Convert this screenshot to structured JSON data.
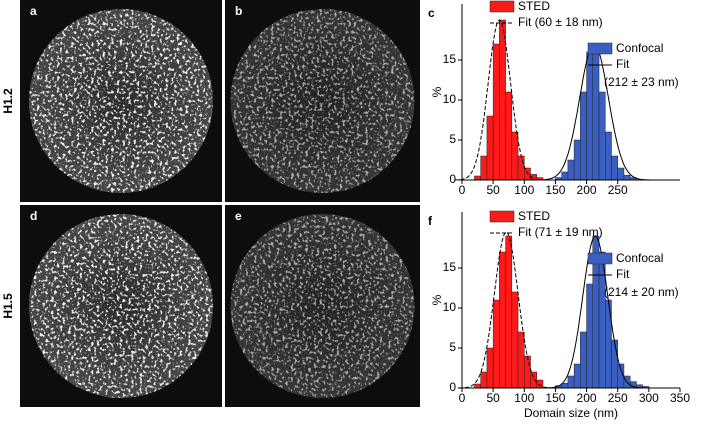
{
  "row_labels": [
    "H1.2",
    "H1.5"
  ],
  "image_panels": [
    "a",
    "b",
    "d",
    "e"
  ],
  "chart_data": [
    {
      "type": "histogram",
      "panel_label": "c",
      "y_label": "%",
      "xlim": [
        0,
        350
      ],
      "xticks": [
        0,
        50,
        100,
        150,
        200,
        250
      ],
      "ylim": [
        0,
        22
      ],
      "yticks": [
        0,
        5,
        10,
        15
      ],
      "series": [
        {
          "name": "STED",
          "color": "#ff1a1a",
          "bins": [
            20,
            30,
            40,
            50,
            60,
            70,
            80,
            90,
            100,
            110,
            120,
            130
          ],
          "values": [
            0.5,
            3,
            8,
            17,
            20,
            11,
            6,
            3,
            1.5,
            0.7,
            0.3
          ],
          "fit_label": [
            "Fit (60 ± 18 nm)"
          ],
          "fit_dash": true,
          "fit_mean": 60,
          "fit_sd": 18,
          "fit_peak": 20
        },
        {
          "name": "Confocal",
          "color": "#3a5fc0",
          "bins": [
            150,
            160,
            170,
            180,
            190,
            200,
            210,
            220,
            230,
            240,
            250,
            260,
            270,
            280
          ],
          "values": [
            0.3,
            1,
            2.5,
            5,
            11,
            16,
            16.5,
            11,
            6,
            3,
            1.5,
            0.6,
            0.3
          ],
          "fit_label": [
            "Fit",
            "(212 ± 23 nm)"
          ],
          "fit_dash": false,
          "fit_mean": 212,
          "fit_sd": 23,
          "fit_peak": 17
        }
      ]
    },
    {
      "type": "histogram",
      "panel_label": "f",
      "y_label": "%",
      "x_label": "Domain size (nm)",
      "xlim": [
        0,
        350
      ],
      "xticks": [
        0,
        50,
        100,
        150,
        200,
        250,
        300,
        350
      ],
      "ylim": [
        0,
        22
      ],
      "yticks": [
        0,
        5,
        10,
        15
      ],
      "series": [
        {
          "name": "STED",
          "color": "#ff1a1a",
          "bins": [
            20,
            30,
            40,
            50,
            60,
            70,
            80,
            90,
            100,
            110,
            120,
            130
          ],
          "values": [
            0.5,
            2,
            5,
            11,
            17,
            19,
            12,
            7,
            4,
            2,
            1
          ],
          "fit_label": [
            "Fit (71 ± 19 nm)"
          ],
          "fit_dash": true,
          "fit_mean": 71,
          "fit_sd": 19,
          "fit_peak": 19.5
        },
        {
          "name": "Confocal",
          "color": "#3a5fc0",
          "bins": [
            150,
            160,
            170,
            180,
            190,
            200,
            210,
            220,
            230,
            240,
            250,
            260,
            270,
            280,
            290,
            300
          ],
          "values": [
            0.3,
            0.6,
            1.5,
            3,
            7,
            13,
            19,
            17,
            11,
            6,
            3,
            1.5,
            0.8,
            0.4,
            0.2
          ],
          "fit_label": [
            "Fit",
            "(214 ± 20 nm)"
          ],
          "fit_dash": false,
          "fit_mean": 214,
          "fit_sd": 20,
          "fit_peak": 19
        }
      ]
    }
  ]
}
